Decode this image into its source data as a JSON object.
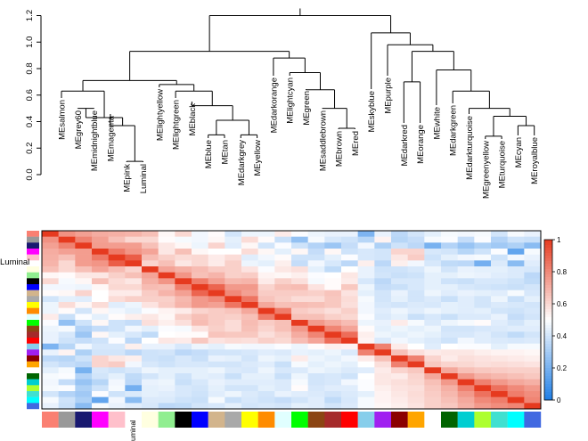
{
  "chart_data": [
    {
      "type": "dendrogram",
      "title": "",
      "ylabel": "",
      "ylim": [
        0,
        1.25
      ],
      "yticks": [
        "0.0",
        "0.2",
        "0.4",
        "0.6",
        "0.8",
        "1.0",
        "1.2"
      ],
      "leaves": [
        "MEsalmon",
        "MEgrey60",
        "MEmidnightblue",
        "MEmagenta",
        "MEpink",
        "Luminal",
        "MElightyellow",
        "MElightgreen",
        "MEblack",
        "MEblue",
        "MEtan",
        "MEdarkgrey",
        "MEyellow",
        "MEdarkorange",
        "MElightcyan",
        "MEgreen",
        "MEsaddlebrown",
        "MEbrown",
        "MEred",
        "MEskyblue",
        "MEpurple",
        "MEdarkred",
        "MEorange",
        "MEwhite",
        "MEdarkgreen",
        "MEdarkturquoise",
        "MEgreenyellow",
        "MEturquoise",
        "MEcyan",
        "MEroyalblue"
      ],
      "merges": [
        {
          "a": 4,
          "b": 5,
          "h": 0.1
        },
        {
          "a": 17,
          "b": 18,
          "h": 0.35
        },
        {
          "a": 9,
          "b": 10,
          "h": 0.3
        },
        {
          "a": 11,
          "b": 12,
          "h": 0.3
        },
        {
          "a": 28,
          "b": 29,
          "h": 0.37
        },
        {
          "a": 26,
          "b": 27,
          "h": 0.29
        },
        {
          "a": 3,
          "b": "n0",
          "h": 0.37
        },
        {
          "a": 1,
          "b": 2,
          "h": 0.5
        },
        {
          "a": "n7",
          "b": "n6",
          "h": 0.43
        },
        {
          "a": "n2",
          "b": "n3",
          "h": 0.41
        },
        {
          "a": 8,
          "b": "n9",
          "h": 0.52
        },
        {
          "a": 7,
          "b": "n10",
          "h": 0.63
        },
        {
          "a": 6,
          "b": "n11",
          "h": 0.68
        },
        {
          "a": 0,
          "b": "n8",
          "h": 0.63
        },
        {
          "a": "n13",
          "b": "n12",
          "h": 0.71
        },
        {
          "a": 16,
          "b": "n1",
          "h": 0.5
        },
        {
          "a": 15,
          "b": "n15",
          "h": 0.64
        },
        {
          "a": 14,
          "b": "n16",
          "h": 0.77
        },
        {
          "a": 13,
          "b": "n17",
          "h": 0.88
        },
        {
          "a": "n14",
          "b": "n18",
          "h": 0.93
        },
        {
          "a": "n5",
          "b": "n4",
          "h": 0.44
        },
        {
          "a": 25,
          "b": "n20",
          "h": 0.5
        },
        {
          "a": 24,
          "b": "n21",
          "h": 0.63
        },
        {
          "a": 23,
          "b": "n22",
          "h": 0.79
        },
        {
          "a": 21,
          "b": 22,
          "h": 0.7
        },
        {
          "a": "n24",
          "b": "n23",
          "h": 0.93
        },
        {
          "a": 20,
          "b": "n25",
          "h": 0.98
        },
        {
          "a": 19,
          "b": "n26",
          "h": 1.07
        },
        {
          "a": "n19",
          "b": "n27",
          "h": 1.2
        }
      ],
      "colors": {
        "line": "#000000"
      }
    },
    {
      "type": "heatmap",
      "title": "",
      "row_labels_visible": [
        "Luminal"
      ],
      "module_colors": [
        "#fa8072",
        "#999999",
        "#191970",
        "#ff00ff",
        "#ffc0cb",
        "#ffffff",
        "#ffffe0",
        "#90ee90",
        "#000000",
        "#0000ff",
        "#d2b48c",
        "#a9a9a9",
        "#ffff00",
        "#ff8c00",
        "#e0ffff",
        "#00ff00",
        "#8b4513",
        "#a52a2a",
        "#ff0000",
        "#87ceeb",
        "#a020f0",
        "#8b0000",
        "#ffa500",
        "#ffffff",
        "#006400",
        "#00ced1",
        "#adff2f",
        "#40e0d0",
        "#00ffff",
        "#4169e1"
      ],
      "bottom_label": "uminal",
      "colorbar": {
        "ticks": [
          "0",
          "0.2",
          "0.4",
          "0.6",
          "0.8",
          "1"
        ],
        "min": 0,
        "max": 1,
        "low": "#1e7ee6",
        "mid": "#ffffff",
        "high": "#e63a1f"
      },
      "matrix": [
        [
          1,
          0.78,
          0.74,
          0.71,
          0.7,
          0.69,
          0.66,
          0.52,
          0.6,
          0.47,
          0.51,
          0.4,
          0.46,
          0.46,
          0.55,
          0.49,
          0.46,
          0.45,
          0.45,
          0.21,
          0.45,
          0.35,
          0.4,
          0.44,
          0.48,
          0.47,
          0.48,
          0.4,
          0.48,
          0.45
        ],
        [
          0.78,
          1,
          0.82,
          0.74,
          0.66,
          0.6,
          0.6,
          0.51,
          0.48,
          0.47,
          0.52,
          0.44,
          0.59,
          0.51,
          0.38,
          0.26,
          0.48,
          0.41,
          0.39,
          0.34,
          0.53,
          0.34,
          0.37,
          0.48,
          0.49,
          0.37,
          0.49,
          0.33,
          0.39,
          0.38
        ],
        [
          0.74,
          0.82,
          1,
          0.75,
          0.75,
          0.75,
          0.66,
          0.56,
          0.52,
          0.46,
          0.61,
          0.43,
          0.52,
          0.4,
          0.49,
          0.39,
          0.33,
          0.28,
          0.37,
          0.47,
          0.32,
          0.39,
          0.35,
          0.2,
          0.33,
          0.27,
          0.32,
          0.29,
          0.32,
          0.24
        ],
        [
          0.71,
          0.74,
          0.75,
          1,
          0.84,
          0.77,
          0.73,
          0.56,
          0.66,
          0.52,
          0.5,
          0.5,
          0.59,
          0.52,
          0.44,
          0.52,
          0.37,
          0.52,
          0.39,
          0.41,
          0.4,
          0.61,
          0.61,
          0.41,
          0.4,
          0.34,
          0.39,
          0.49,
          0.15,
          0.48
        ],
        [
          0.7,
          0.66,
          0.75,
          0.84,
          1,
          0.91,
          0.67,
          0.62,
          0.59,
          0.6,
          0.55,
          0.59,
          0.43,
          0.47,
          0.51,
          0.39,
          0.39,
          0.44,
          0.49,
          0.41,
          0.4,
          0.56,
          0.63,
          0.39,
          0.44,
          0.47,
          0.48,
          0.39,
          0.47,
          0.45
        ],
        [
          0.69,
          0.6,
          0.75,
          0.77,
          0.91,
          1,
          0.61,
          0.66,
          0.56,
          0.6,
          0.55,
          0.62,
          0.46,
          0.44,
          0.54,
          0.37,
          0.47,
          0.41,
          0.35,
          0.54,
          0.35,
          0.54,
          0.47,
          0.41,
          0.36,
          0.35,
          0.19,
          0.42,
          0.24,
          0.43
        ],
        [
          0.66,
          0.6,
          0.66,
          0.73,
          0.67,
          0.61,
          1,
          0.73,
          0.7,
          0.67,
          0.63,
          0.62,
          0.57,
          0.49,
          0.56,
          0.58,
          0.44,
          0.36,
          0.5,
          0.45,
          0.39,
          0.39,
          0.41,
          0.46,
          0.4,
          0.45,
          0.44,
          0.44,
          0.42,
          0.41
        ],
        [
          0.52,
          0.51,
          0.56,
          0.56,
          0.62,
          0.66,
          0.73,
          1,
          0.77,
          0.66,
          0.69,
          0.62,
          0.63,
          0.53,
          0.52,
          0.54,
          0.49,
          0.5,
          0.56,
          0.45,
          0.4,
          0.38,
          0.39,
          0.44,
          0.44,
          0.46,
          0.45,
          0.43,
          0.42,
          0.35
        ],
        [
          0.6,
          0.48,
          0.52,
          0.66,
          0.59,
          0.56,
          0.7,
          0.77,
          1,
          0.83,
          0.74,
          0.68,
          0.69,
          0.55,
          0.62,
          0.58,
          0.48,
          0.51,
          0.55,
          0.41,
          0.35,
          0.41,
          0.41,
          0.44,
          0.39,
          0.38,
          0.41,
          0.41,
          0.39,
          0.36
        ],
        [
          0.47,
          0.47,
          0.46,
          0.52,
          0.6,
          0.6,
          0.67,
          0.66,
          0.83,
          1,
          0.89,
          0.76,
          0.76,
          0.61,
          0.66,
          0.67,
          0.57,
          0.51,
          0.64,
          0.46,
          0.37,
          0.38,
          0.41,
          0.44,
          0.44,
          0.41,
          0.4,
          0.39,
          0.38,
          0.4
        ],
        [
          0.51,
          0.52,
          0.61,
          0.5,
          0.55,
          0.55,
          0.63,
          0.69,
          0.74,
          0.89,
          1,
          0.8,
          0.74,
          0.63,
          0.63,
          0.63,
          0.62,
          0.65,
          0.57,
          0.44,
          0.4,
          0.45,
          0.4,
          0.46,
          0.43,
          0.45,
          0.44,
          0.43,
          0.48,
          0.41
        ],
        [
          0.4,
          0.44,
          0.43,
          0.5,
          0.59,
          0.62,
          0.62,
          0.62,
          0.68,
          0.76,
          0.8,
          1,
          0.85,
          0.65,
          0.62,
          0.59,
          0.59,
          0.64,
          0.59,
          0.48,
          0.4,
          0.44,
          0.4,
          0.42,
          0.38,
          0.43,
          0.4,
          0.46,
          0.38,
          0.44
        ],
        [
          0.46,
          0.59,
          0.52,
          0.59,
          0.43,
          0.46,
          0.57,
          0.63,
          0.69,
          0.76,
          0.74,
          0.85,
          1,
          0.72,
          0.66,
          0.67,
          0.66,
          0.64,
          0.58,
          0.47,
          0.41,
          0.4,
          0.42,
          0.41,
          0.44,
          0.43,
          0.4,
          0.42,
          0.41,
          0.4
        ],
        [
          0.46,
          0.51,
          0.4,
          0.52,
          0.47,
          0.44,
          0.49,
          0.53,
          0.55,
          0.61,
          0.63,
          0.65,
          0.72,
          1,
          0.83,
          0.63,
          0.61,
          0.58,
          0.62,
          0.47,
          0.43,
          0.46,
          0.43,
          0.46,
          0.44,
          0.43,
          0.44,
          0.4,
          0.39,
          0.41
        ],
        [
          0.55,
          0.38,
          0.49,
          0.44,
          0.51,
          0.54,
          0.56,
          0.52,
          0.62,
          0.66,
          0.63,
          0.62,
          0.66,
          0.83,
          1,
          0.66,
          0.66,
          0.62,
          0.6,
          0.49,
          0.42,
          0.44,
          0.38,
          0.41,
          0.38,
          0.42,
          0.42,
          0.45,
          0.37,
          0.4
        ],
        [
          0.49,
          0.26,
          0.39,
          0.52,
          0.39,
          0.37,
          0.58,
          0.54,
          0.58,
          0.67,
          0.63,
          0.59,
          0.67,
          0.63,
          0.66,
          1,
          0.76,
          0.71,
          0.67,
          0.46,
          0.45,
          0.55,
          0.48,
          0.42,
          0.46,
          0.48,
          0.51,
          0.43,
          0.4,
          0.44
        ],
        [
          0.46,
          0.48,
          0.33,
          0.37,
          0.39,
          0.47,
          0.44,
          0.49,
          0.48,
          0.57,
          0.62,
          0.59,
          0.66,
          0.61,
          0.66,
          0.76,
          1,
          0.81,
          0.73,
          0.51,
          0.44,
          0.46,
          0.44,
          0.46,
          0.4,
          0.4,
          0.41,
          0.42,
          0.43,
          0.43
        ],
        [
          0.45,
          0.41,
          0.28,
          0.52,
          0.44,
          0.41,
          0.36,
          0.5,
          0.51,
          0.51,
          0.65,
          0.64,
          0.64,
          0.58,
          0.62,
          0.71,
          0.81,
          1,
          0.87,
          0.54,
          0.46,
          0.44,
          0.46,
          0.44,
          0.41,
          0.41,
          0.43,
          0.4,
          0.36,
          0.4
        ],
        [
          0.45,
          0.39,
          0.37,
          0.39,
          0.49,
          0.35,
          0.5,
          0.56,
          0.55,
          0.64,
          0.57,
          0.59,
          0.58,
          0.62,
          0.6,
          0.67,
          0.73,
          0.87,
          1,
          0.53,
          0.42,
          0.47,
          0.44,
          0.42,
          0.39,
          0.47,
          0.43,
          0.42,
          0.41,
          0.42
        ],
        [
          0.21,
          0.34,
          0.47,
          0.41,
          0.41,
          0.54,
          0.45,
          0.45,
          0.41,
          0.46,
          0.44,
          0.48,
          0.47,
          0.47,
          0.49,
          0.46,
          0.51,
          0.54,
          0.53,
          1,
          0.82,
          0.55,
          0.5,
          0.43,
          0.5,
          0.49,
          0.49,
          0.44,
          0.48,
          0.48
        ],
        [
          0.45,
          0.53,
          0.32,
          0.4,
          0.4,
          0.35,
          0.39,
          0.4,
          0.35,
          0.37,
          0.4,
          0.4,
          0.41,
          0.43,
          0.42,
          0.45,
          0.44,
          0.46,
          0.42,
          0.82,
          1,
          0.66,
          0.58,
          0.55,
          0.56,
          0.56,
          0.54,
          0.53,
          0.53,
          0.52
        ],
        [
          0.35,
          0.34,
          0.39,
          0.61,
          0.56,
          0.54,
          0.39,
          0.38,
          0.41,
          0.38,
          0.45,
          0.44,
          0.4,
          0.46,
          0.44,
          0.55,
          0.46,
          0.44,
          0.47,
          0.55,
          0.66,
          1,
          0.82,
          0.61,
          0.55,
          0.58,
          0.57,
          0.56,
          0.55,
          0.54
        ],
        [
          0.4,
          0.37,
          0.35,
          0.61,
          0.63,
          0.47,
          0.41,
          0.39,
          0.41,
          0.41,
          0.4,
          0.4,
          0.42,
          0.43,
          0.38,
          0.48,
          0.44,
          0.46,
          0.44,
          0.5,
          0.58,
          0.82,
          1,
          0.64,
          0.61,
          0.6,
          0.58,
          0.59,
          0.58,
          0.57
        ],
        [
          0.44,
          0.48,
          0.2,
          0.41,
          0.39,
          0.41,
          0.46,
          0.44,
          0.44,
          0.44,
          0.46,
          0.42,
          0.41,
          0.46,
          0.41,
          0.42,
          0.46,
          0.44,
          0.42,
          0.43,
          0.55,
          0.61,
          0.64,
          1,
          0.72,
          0.66,
          0.64,
          0.63,
          0.62,
          0.62
        ],
        [
          0.48,
          0.49,
          0.33,
          0.4,
          0.44,
          0.36,
          0.4,
          0.44,
          0.39,
          0.44,
          0.43,
          0.38,
          0.44,
          0.44,
          0.38,
          0.46,
          0.4,
          0.41,
          0.39,
          0.5,
          0.56,
          0.55,
          0.61,
          0.72,
          1,
          0.76,
          0.7,
          0.68,
          0.66,
          0.64
        ],
        [
          0.47,
          0.37,
          0.27,
          0.34,
          0.47,
          0.35,
          0.45,
          0.46,
          0.38,
          0.41,
          0.45,
          0.43,
          0.43,
          0.43,
          0.42,
          0.48,
          0.4,
          0.41,
          0.47,
          0.49,
          0.56,
          0.58,
          0.6,
          0.66,
          0.76,
          1,
          0.82,
          0.76,
          0.72,
          0.7
        ],
        [
          0.48,
          0.49,
          0.32,
          0.39,
          0.48,
          0.19,
          0.44,
          0.45,
          0.41,
          0.4,
          0.44,
          0.4,
          0.4,
          0.44,
          0.42,
          0.51,
          0.41,
          0.43,
          0.43,
          0.49,
          0.54,
          0.57,
          0.58,
          0.64,
          0.7,
          0.82,
          1,
          0.86,
          0.8,
          0.76
        ],
        [
          0.4,
          0.33,
          0.29,
          0.49,
          0.39,
          0.42,
          0.44,
          0.43,
          0.41,
          0.39,
          0.43,
          0.46,
          0.42,
          0.4,
          0.45,
          0.43,
          0.42,
          0.4,
          0.42,
          0.44,
          0.53,
          0.56,
          0.59,
          0.63,
          0.68,
          0.76,
          0.86,
          1,
          0.83,
          0.79
        ],
        [
          0.48,
          0.39,
          0.32,
          0.15,
          0.47,
          0.24,
          0.42,
          0.42,
          0.39,
          0.38,
          0.48,
          0.38,
          0.41,
          0.39,
          0.37,
          0.4,
          0.43,
          0.36,
          0.41,
          0.48,
          0.53,
          0.55,
          0.58,
          0.62,
          0.66,
          0.72,
          0.8,
          0.83,
          1,
          0.81
        ],
        [
          0.45,
          0.38,
          0.24,
          0.48,
          0.45,
          0.43,
          0.41,
          0.35,
          0.36,
          0.4,
          0.41,
          0.44,
          0.4,
          0.41,
          0.4,
          0.44,
          0.43,
          0.4,
          0.42,
          0.48,
          0.52,
          0.54,
          0.57,
          0.62,
          0.64,
          0.7,
          0.76,
          0.79,
          0.81,
          1
        ]
      ]
    }
  ]
}
